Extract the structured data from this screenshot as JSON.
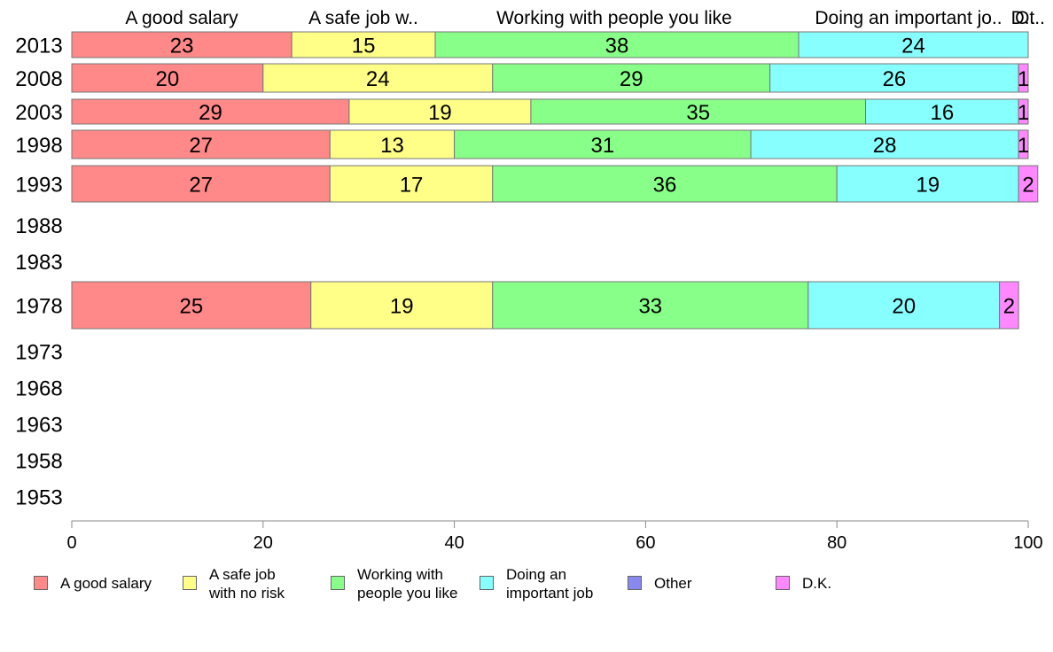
{
  "chart_data": {
    "type": "bar",
    "orientation": "horizontal",
    "stacked": true,
    "categories": [
      "2013",
      "2008",
      "2003",
      "1998",
      "1993",
      "1988",
      "1983",
      "1978",
      "1973",
      "1968",
      "1963",
      "1958",
      "1953"
    ],
    "series": [
      {
        "name": "A good salary",
        "header": "A good salary",
        "color": "#ff8888",
        "values": [
          23,
          20,
          29,
          27,
          27,
          null,
          null,
          25,
          null,
          null,
          null,
          null,
          null
        ]
      },
      {
        "name": "A safe job\nwith no risk",
        "header": "A safe job w..",
        "color": "#ffff88",
        "values": [
          15,
          24,
          19,
          13,
          17,
          null,
          null,
          19,
          null,
          null,
          null,
          null,
          null
        ]
      },
      {
        "name": "Working with\npeople you like",
        "header": "Working with people you like",
        "color": "#88ff88",
        "values": [
          38,
          29,
          35,
          31,
          36,
          null,
          null,
          33,
          null,
          null,
          null,
          null,
          null
        ]
      },
      {
        "name": "Doing an\nimportant job",
        "header": "Doing an important jo..",
        "color": "#88ffff",
        "values": [
          24,
          26,
          16,
          28,
          19,
          null,
          null,
          20,
          null,
          null,
          null,
          null,
          null
        ]
      },
      {
        "name": "Other",
        "header": "",
        "color": "#8888ee",
        "values": [
          0,
          0,
          0,
          0,
          0,
          null,
          null,
          0,
          null,
          null,
          null,
          null,
          null
        ]
      },
      {
        "name": "D.K.",
        "header": "D..",
        "color": "#ff88ff",
        "values": [
          0,
          1,
          1,
          1,
          2,
          null,
          null,
          2,
          null,
          null,
          null,
          null,
          null
        ]
      }
    ],
    "header_extra": "Ot..",
    "xlim": [
      0,
      100
    ],
    "xticks": [
      0,
      20,
      40,
      60,
      80,
      100
    ],
    "legend_position": "bottom",
    "grid": false
  }
}
